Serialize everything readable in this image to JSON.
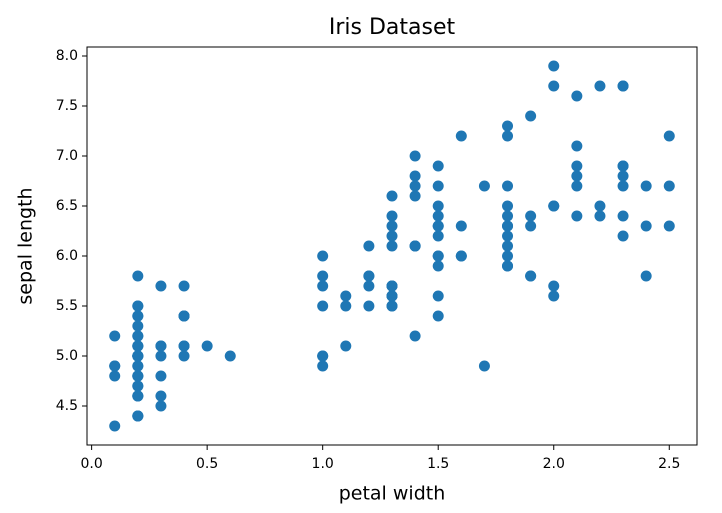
{
  "chart_data": {
    "type": "scatter",
    "title": "Iris Dataset",
    "x_label": "petal width",
    "y_label": "sepal length",
    "color": "#1f77b4",
    "x": [
      0.2,
      0.2,
      0.2,
      0.2,
      0.2,
      0.4,
      0.3,
      0.2,
      0.2,
      0.1,
      0.2,
      0.2,
      0.1,
      0.1,
      0.2,
      0.4,
      0.4,
      0.3,
      0.3,
      0.3,
      0.2,
      0.4,
      0.2,
      0.5,
      0.2,
      0.2,
      0.4,
      0.2,
      0.2,
      0.2,
      0.2,
      0.4,
      0.1,
      0.2,
      0.2,
      0.2,
      0.2,
      0.1,
      0.2,
      0.2,
      0.3,
      0.3,
      0.2,
      0.6,
      0.4,
      0.3,
      0.2,
      0.2,
      0.2,
      0.2,
      1.4,
      1.5,
      1.5,
      1.3,
      1.5,
      1.3,
      1.6,
      1.0,
      1.3,
      1.4,
      1.0,
      1.5,
      1.0,
      1.4,
      1.3,
      1.4,
      1.5,
      1.0,
      1.5,
      1.1,
      1.8,
      1.3,
      1.5,
      1.2,
      1.3,
      1.4,
      1.4,
      1.7,
      1.5,
      1.0,
      1.1,
      1.0,
      1.2,
      1.6,
      1.5,
      1.6,
      1.5,
      1.3,
      1.3,
      1.3,
      1.2,
      1.4,
      1.2,
      1.0,
      1.3,
      1.2,
      1.3,
      1.3,
      1.1,
      1.3,
      2.5,
      1.9,
      2.1,
      1.8,
      2.2,
      2.1,
      1.7,
      1.8,
      1.8,
      2.5,
      2.0,
      1.9,
      2.1,
      2.0,
      2.4,
      2.3,
      1.8,
      2.2,
      2.3,
      1.5,
      2.3,
      2.0,
      2.0,
      1.8,
      2.1,
      1.8,
      1.8,
      1.8,
      2.1,
      1.6,
      1.9,
      2.0,
      2.2,
      1.5,
      1.4,
      2.3,
      2.4,
      1.8,
      1.8,
      2.1,
      2.4,
      2.3,
      1.9,
      2.3,
      2.5,
      2.3,
      1.9,
      2.0,
      2.3,
      1.8
    ],
    "values": [
      5.1,
      4.9,
      4.7,
      4.6,
      5.0,
      5.4,
      4.6,
      5.0,
      4.4,
      4.9,
      5.4,
      4.8,
      4.8,
      4.3,
      5.8,
      5.7,
      5.4,
      5.1,
      5.7,
      5.1,
      5.4,
      5.1,
      4.6,
      5.1,
      4.8,
      5.0,
      5.0,
      5.2,
      5.2,
      4.7,
      4.8,
      5.4,
      5.2,
      5.5,
      4.9,
      5.0,
      5.5,
      4.9,
      4.4,
      5.1,
      5.0,
      4.5,
      4.4,
      5.0,
      5.1,
      4.8,
      5.1,
      4.6,
      5.3,
      5.0,
      7.0,
      6.4,
      6.9,
      5.5,
      6.5,
      5.7,
      6.3,
      4.9,
      6.6,
      5.2,
      5.0,
      5.9,
      6.0,
      6.1,
      5.6,
      6.7,
      5.6,
      5.8,
      6.2,
      5.6,
      5.9,
      6.1,
      6.3,
      6.1,
      6.4,
      6.6,
      6.8,
      6.7,
      6.0,
      5.7,
      5.5,
      5.5,
      5.8,
      6.0,
      5.4,
      6.0,
      6.7,
      6.3,
      5.6,
      5.5,
      5.5,
      6.1,
      5.8,
      5.0,
      5.6,
      5.7,
      5.7,
      6.2,
      5.1,
      5.7,
      6.3,
      5.8,
      7.1,
      6.3,
      6.5,
      7.6,
      4.9,
      7.3,
      6.7,
      7.2,
      6.5,
      6.4,
      6.8,
      5.7,
      5.8,
      6.4,
      6.5,
      7.7,
      7.7,
      6.0,
      6.9,
      5.6,
      7.7,
      6.3,
      6.7,
      7.2,
      6.2,
      6.1,
      6.4,
      7.2,
      7.4,
      7.9,
      6.4,
      6.3,
      6.1,
      7.7,
      6.3,
      6.4,
      6.0,
      6.9,
      6.7,
      6.9,
      5.8,
      6.8,
      6.7,
      6.7,
      6.3,
      6.5,
      6.2,
      5.9
    ],
    "xlim": [
      -0.02,
      2.62
    ],
    "ylim": [
      4.11,
      8.09
    ],
    "xticks": [
      {
        "value": 0,
        "label": "0.0"
      },
      0.5,
      {
        "value": 1,
        "label": "1.0"
      },
      1.5,
      {
        "value": 2,
        "label": "2.0"
      },
      2.5
    ],
    "yticks": [
      4.5,
      {
        "value": 5,
        "label": "5.0"
      },
      5.5,
      {
        "value": 6,
        "label": "6.0"
      },
      6.5,
      {
        "value": 7,
        "label": "7.0"
      },
      7.5,
      {
        "value": 8,
        "label": "8.0"
      }
    ],
    "grid": false
  }
}
